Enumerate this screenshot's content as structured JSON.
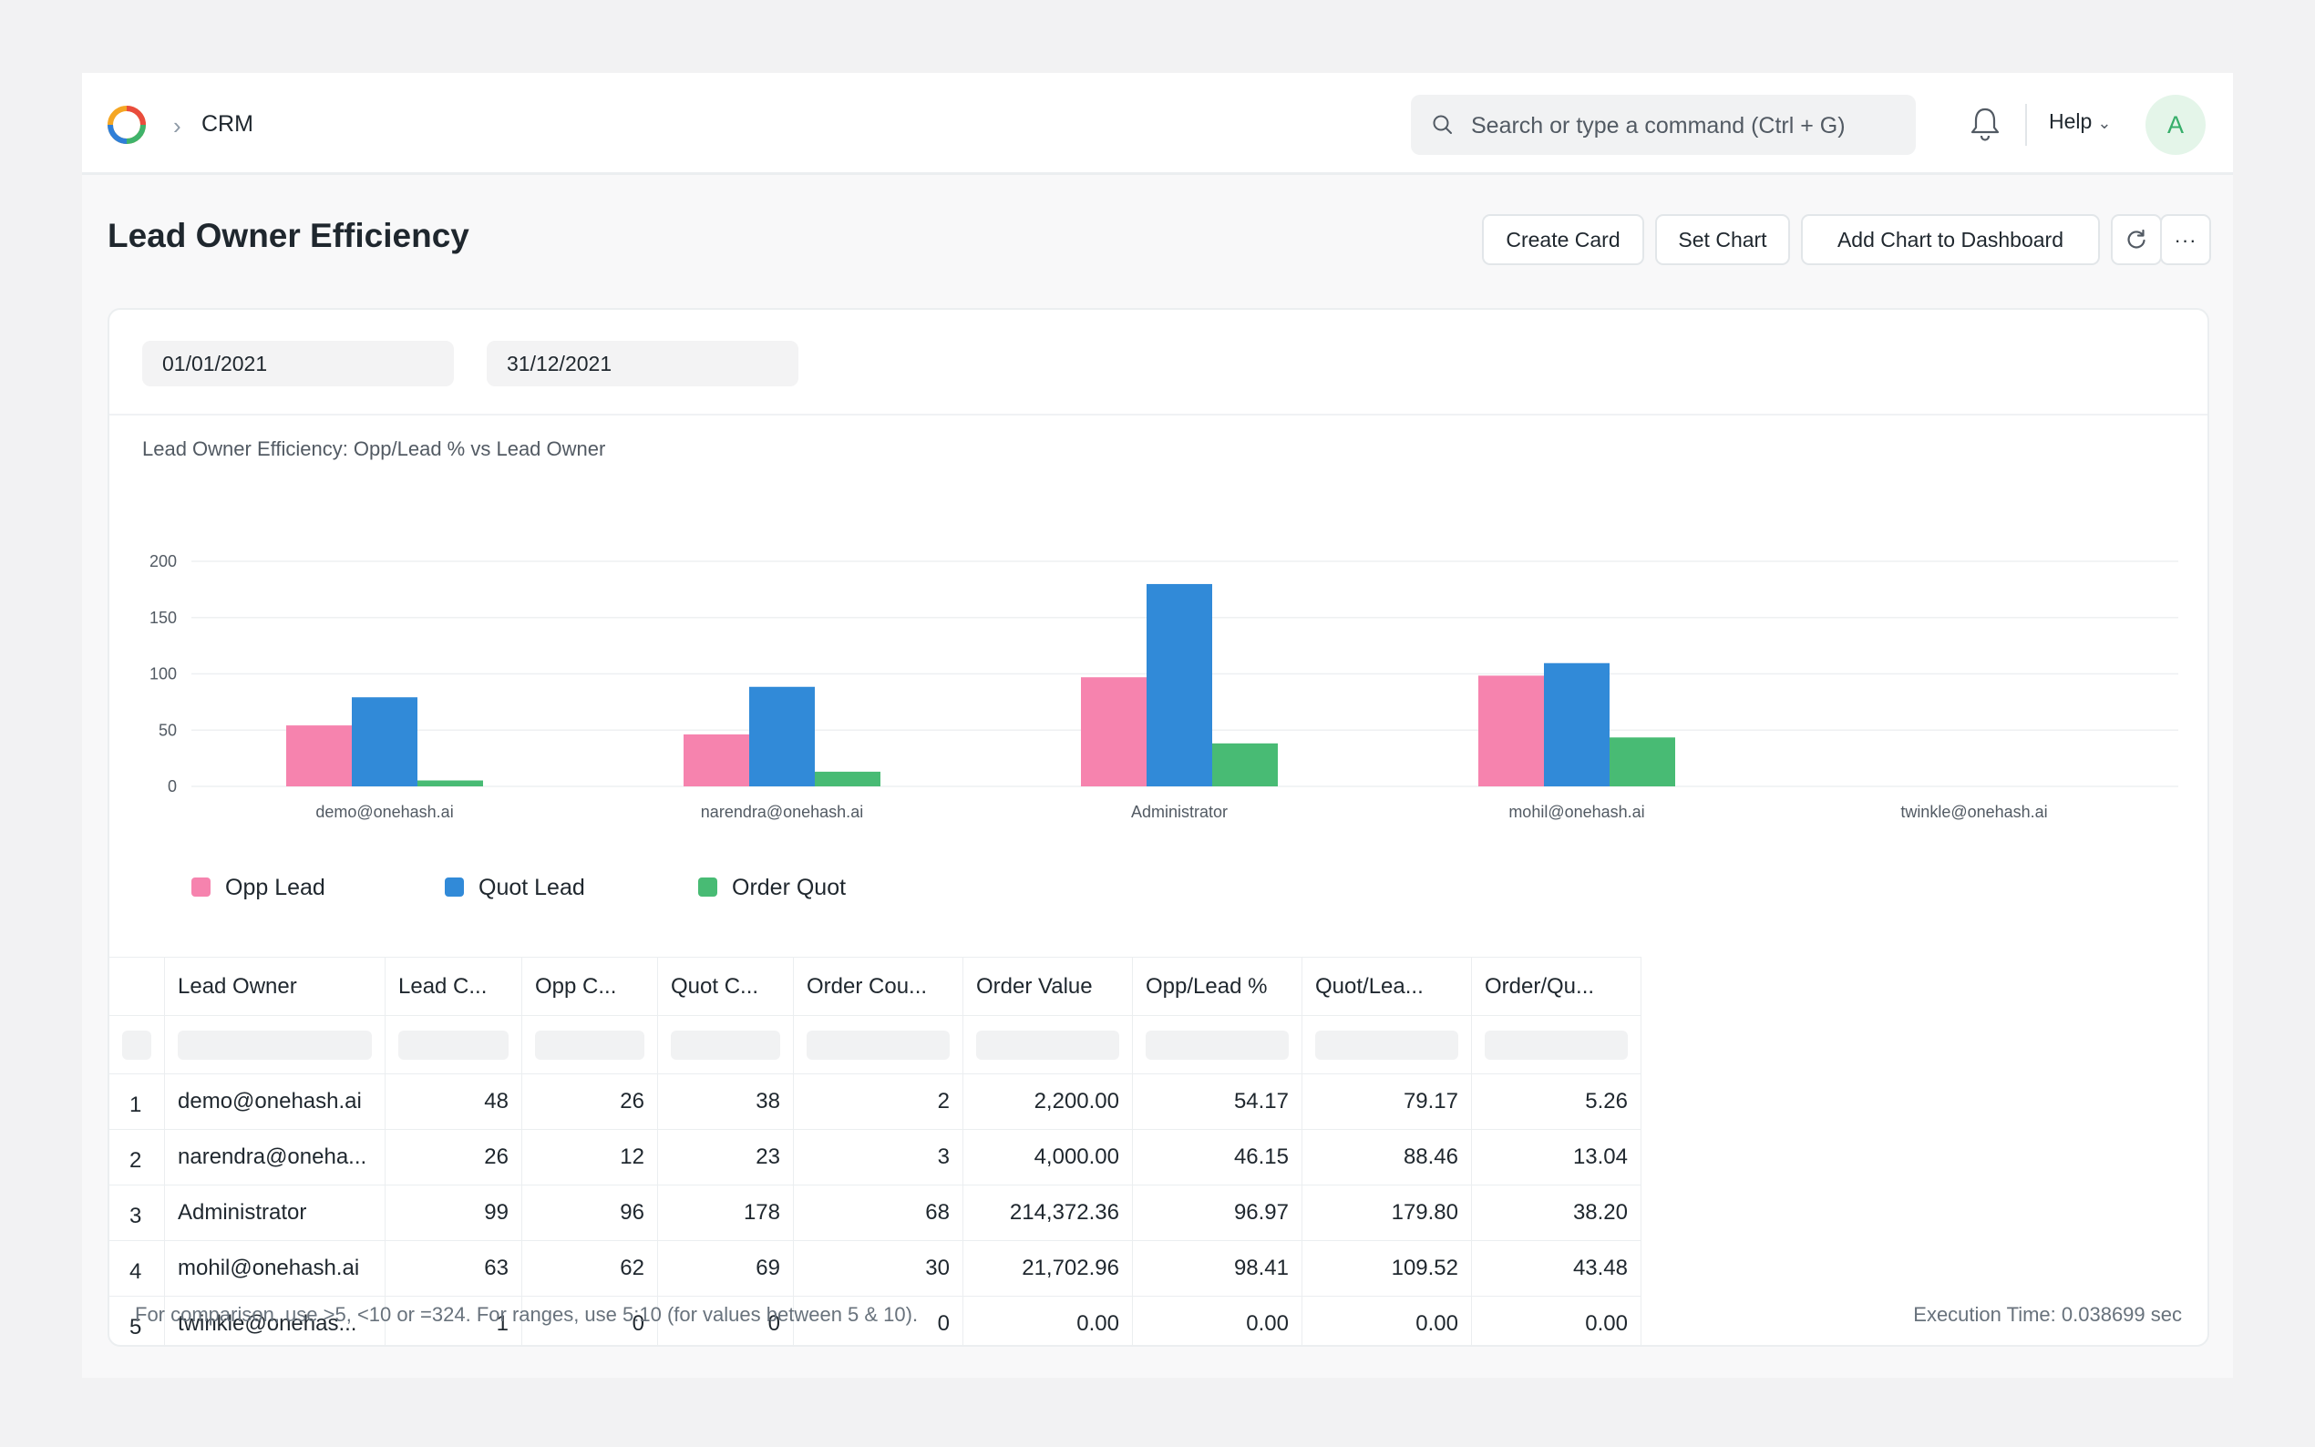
{
  "navbar": {
    "breadcrumb": "CRM",
    "search_placeholder": "Search or type a command (Ctrl + G)",
    "help_label": "Help",
    "avatar_initial": "A"
  },
  "page": {
    "title": "Lead Owner Efficiency",
    "buttons": {
      "create_card": "Create Card",
      "set_chart": "Set Chart",
      "add_to_dashboard": "Add Chart to Dashboard"
    }
  },
  "filters": {
    "from_date": "01/01/2021",
    "to_date": "31/12/2021"
  },
  "chart_data": {
    "type": "bar",
    "title": "Lead Owner Efficiency: Opp/Lead % vs Lead Owner",
    "categories": [
      "demo@onehash.ai",
      "narendra@onehash.ai",
      "Administrator",
      "mohil@onehash.ai",
      "twinkle@onehash.ai"
    ],
    "series": [
      {
        "name": "Opp Lead",
        "color": "#f683ae",
        "values": [
          54.17,
          46.15,
          96.97,
          98.41,
          0
        ]
      },
      {
        "name": "Quot Lead",
        "color": "#318ad8",
        "values": [
          79.17,
          88.46,
          179.8,
          109.52,
          0
        ]
      },
      {
        "name": "Order Quot",
        "color": "#48bb74",
        "values": [
          5.26,
          13.04,
          38.2,
          43.48,
          0
        ]
      }
    ],
    "yticks": [
      0,
      50,
      100,
      150,
      200
    ],
    "ylim": [
      0,
      200
    ],
    "grid": true,
    "legend": "bottom-left"
  },
  "table": {
    "columns": [
      "Lead Owner",
      "Lead C...",
      "Opp C...",
      "Quot C...",
      "Order Cou...",
      "Order Value",
      "Opp/Lead %",
      "Quot/Lea...",
      "Order/Qu..."
    ],
    "rows": [
      [
        "1",
        "demo@onehash.ai",
        "48",
        "26",
        "38",
        "2",
        "2,200.00",
        "54.17",
        "79.17",
        "5.26"
      ],
      [
        "2",
        "narendra@oneha...",
        "26",
        "12",
        "23",
        "3",
        "4,000.00",
        "46.15",
        "88.46",
        "13.04"
      ],
      [
        "3",
        "Administrator",
        "99",
        "96",
        "178",
        "68",
        "214,372.36",
        "96.97",
        "179.80",
        "38.20"
      ],
      [
        "4",
        "mohil@onehash.ai",
        "63",
        "62",
        "69",
        "30",
        "21,702.96",
        "98.41",
        "109.52",
        "43.48"
      ],
      [
        "5",
        "twinkle@onehas...",
        "1",
        "0",
        "0",
        "0",
        "0.00",
        "0.00",
        "0.00",
        "0.00"
      ]
    ]
  },
  "footer": {
    "note": "For comparison, use >5, <10 or =324. For ranges, use 5:10 (for values between 5 & 10).",
    "execution_time": "Execution Time: 0.038699 sec"
  }
}
